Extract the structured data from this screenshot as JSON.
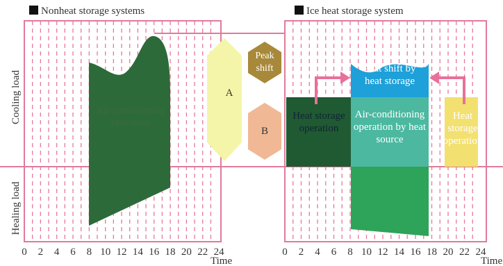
{
  "left": {
    "title": "Nonheat storage systems",
    "y_labels": [
      "Cooling load",
      "Healing load"
    ],
    "area_label": "Air-conditioning operation",
    "x_ticks": [
      0,
      2,
      4,
      6,
      8,
      10,
      12,
      14,
      16,
      18,
      20,
      22,
      24
    ],
    "x_label": "Time"
  },
  "middle": {
    "a": "A",
    "peak_shift": "Peak shift",
    "b": "B"
  },
  "right": {
    "title": "Ice heat storage system",
    "peak_label": "Peat shift by heat storage",
    "source_label": "Air-conditioning operation by heat source",
    "storage_left": "Heat storage operation",
    "storage_right": "Heat storage operation",
    "x_ticks": [
      0,
      2,
      4,
      6,
      8,
      10,
      12,
      14,
      16,
      18,
      20,
      22,
      24
    ],
    "x_label": "Time"
  }
}
